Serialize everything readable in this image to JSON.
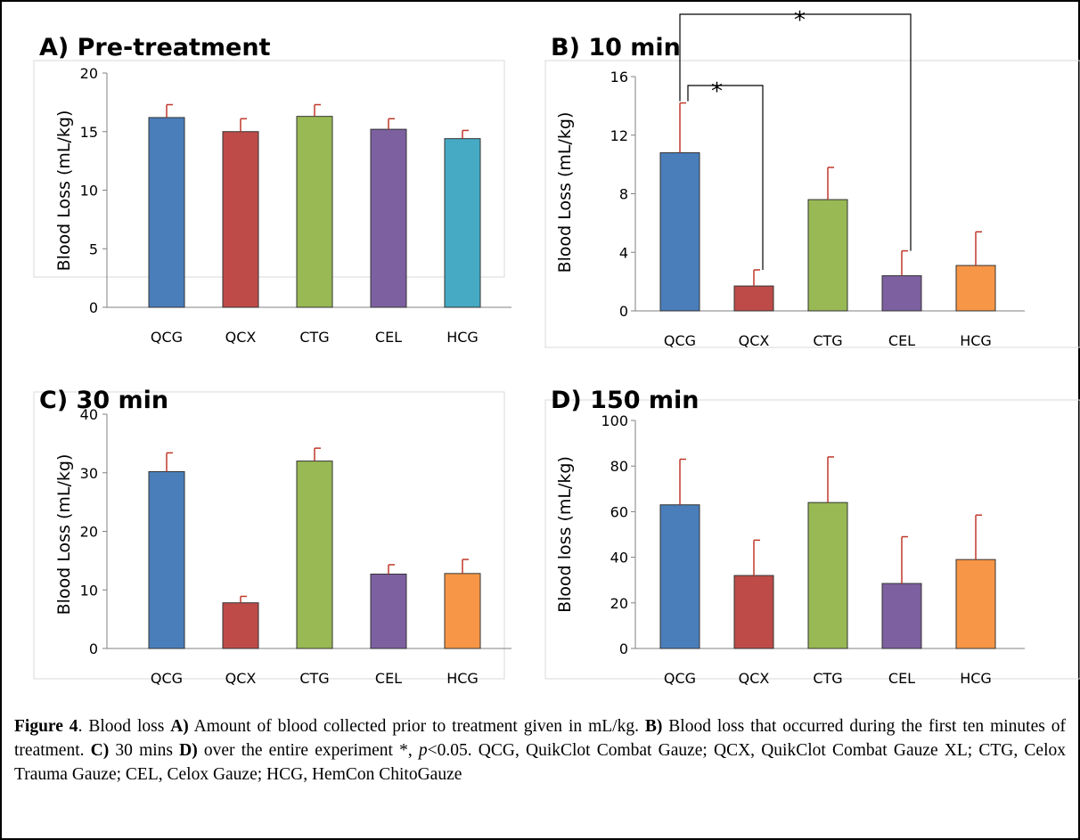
{
  "categories": [
    "QCG",
    "QCX",
    "CTG",
    "CEL",
    "HCG"
  ],
  "colors": {
    "QCG": "#4a7ebb",
    "QCX": "#be4b48",
    "CTG": "#98b954",
    "CEL": "#7d60a0",
    "HCG_A": "#46aac5",
    "HCG": "#f79646",
    "error": "#c0392b"
  },
  "chart_data": [
    {
      "panel": "A",
      "type": "bar",
      "title": "A) Pre-treatment",
      "ylabel": "Blood Loss (mL/kg)",
      "ylim": [
        0,
        20
      ],
      "yticks": [
        0,
        5,
        10,
        15,
        20
      ],
      "categories": [
        "QCG",
        "QCX",
        "CTG",
        "CEL",
        "HCG"
      ],
      "values": [
        16.2,
        15.0,
        16.3,
        15.2,
        14.4
      ],
      "errors": [
        1.1,
        1.1,
        1.0,
        0.9,
        0.7
      ],
      "bar_colors": [
        "#4a7ebb",
        "#be4b48",
        "#98b954",
        "#7d60a0",
        "#46aac5"
      ]
    },
    {
      "panel": "B",
      "type": "bar",
      "title": "B) 10 min",
      "ylabel": "Blood Loss (mL/kg)",
      "ylim": [
        0,
        16
      ],
      "yticks": [
        0,
        4,
        8,
        12,
        16
      ],
      "categories": [
        "QCG",
        "QCX",
        "CTG",
        "CEL",
        "HCG"
      ],
      "values": [
        10.8,
        1.7,
        7.6,
        2.4,
        3.1
      ],
      "errors": [
        3.4,
        1.1,
        2.2,
        1.7,
        2.3
      ],
      "bar_colors": [
        "#4a7ebb",
        "#be4b48",
        "#98b954",
        "#7d60a0",
        "#f79646"
      ],
      "significance": [
        {
          "from": "QCG",
          "to": "QCX",
          "label": "*"
        },
        {
          "from": "QCG",
          "to": "CEL",
          "label": "*"
        }
      ]
    },
    {
      "panel": "C",
      "type": "bar",
      "title": "C) 30 min",
      "ylabel": "Blood Loss (mL/kg)",
      "ylim": [
        0,
        40
      ],
      "yticks": [
        0,
        10,
        20,
        30,
        40
      ],
      "categories": [
        "QCG",
        "QCX",
        "CTG",
        "CEL",
        "HCG"
      ],
      "values": [
        30.2,
        7.8,
        32.0,
        12.7,
        12.8
      ],
      "errors": [
        3.2,
        1.1,
        2.2,
        1.6,
        2.4
      ],
      "bar_colors": [
        "#4a7ebb",
        "#be4b48",
        "#98b954",
        "#7d60a0",
        "#f79646"
      ]
    },
    {
      "panel": "D",
      "type": "bar",
      "title": "D) 150 min",
      "ylabel": "Blood loss (mL/kg)",
      "ylim": [
        0,
        100
      ],
      "yticks": [
        0,
        20,
        40,
        60,
        80,
        100
      ],
      "categories": [
        "QCG",
        "QCX",
        "CTG",
        "CEL",
        "HCG"
      ],
      "values": [
        63,
        32,
        64,
        28.5,
        39
      ],
      "errors": [
        20,
        15.5,
        20,
        20.5,
        19.5
      ],
      "bar_colors": [
        "#4a7ebb",
        "#be4b48",
        "#98b954",
        "#7d60a0",
        "#f79646"
      ]
    }
  ],
  "caption": {
    "figure_label": "Figure 4",
    "intro": ". Blood loss ",
    "a_label": "A)",
    "a_text": " Amount of blood collected prior to treatment given in mL/kg. ",
    "b_label": "B)",
    "b_text": " Blood loss that occurred during the first ten minutes of treatment. ",
    "c_label": "C)",
    "c_text": " 30 mins ",
    "d_label": "D)",
    "d_text": " over the entire experiment *, ",
    "p_symbol": "p",
    "p_text": "<0.05. QCG, QuikClot Combat Gauze; QCX, QuikClot Combat Gauze XL; CTG, Celox Trauma Gauze; CEL, Celox Gauze; HCG, HemCon ChitoGauze"
  }
}
